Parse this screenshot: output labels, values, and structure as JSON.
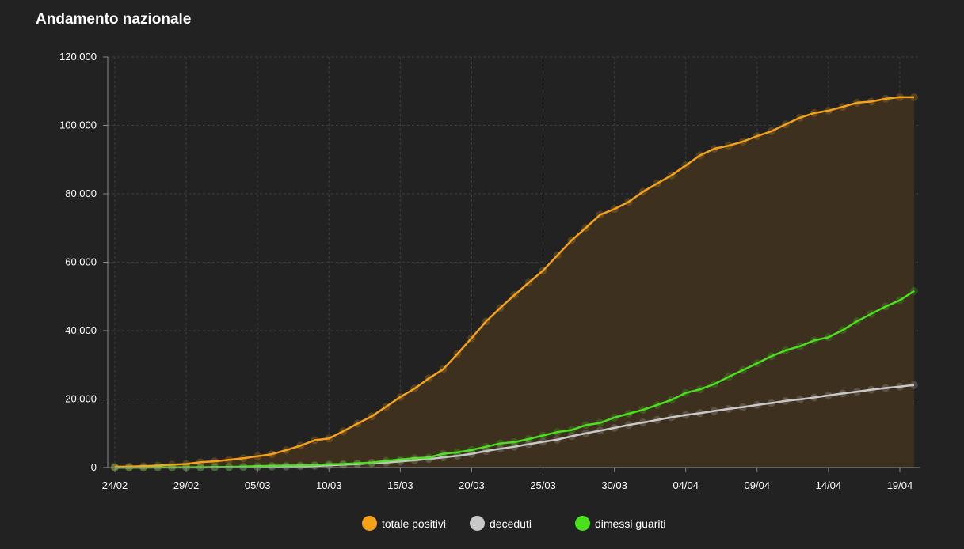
{
  "title": "Andamento nazionale",
  "chart_data": {
    "type": "area",
    "title": "Andamento nazionale",
    "x_tick_labels": [
      "24/02",
      "29/02",
      "05/03",
      "10/03",
      "15/03",
      "20/03",
      "25/03",
      "30/03",
      "04/04",
      "09/04",
      "14/04",
      "19/04"
    ],
    "x": [
      "24/02",
      "25/02",
      "26/02",
      "27/02",
      "28/02",
      "29/02",
      "01/03",
      "02/03",
      "03/03",
      "04/03",
      "05/03",
      "06/03",
      "07/03",
      "08/03",
      "09/03",
      "10/03",
      "11/03",
      "12/03",
      "13/03",
      "14/03",
      "15/03",
      "16/03",
      "17/03",
      "18/03",
      "19/03",
      "20/03",
      "21/03",
      "22/03",
      "23/03",
      "24/03",
      "25/03",
      "26/03",
      "27/03",
      "28/03",
      "29/03",
      "30/03",
      "31/03",
      "01/04",
      "02/04",
      "03/04",
      "04/04",
      "05/04",
      "06/04",
      "07/04",
      "08/04",
      "09/04",
      "10/04",
      "11/04",
      "12/04",
      "13/04",
      "14/04",
      "15/04",
      "16/04",
      "17/04",
      "18/04",
      "19/04",
      "20/04"
    ],
    "ylim": [
      0,
      120000
    ],
    "y_ticks": [
      0,
      20000,
      40000,
      60000,
      80000,
      100000,
      120000
    ],
    "y_tick_labels": [
      "0",
      "20.000",
      "40.000",
      "60.000",
      "80.000",
      "100.000",
      "120.000"
    ],
    "grid": true,
    "legend_position": "bottom",
    "series": [
      {
        "name": "totale positivi",
        "color": "#f5a21b",
        "fill": "#3d301f",
        "values": [
          221,
          311,
          385,
          588,
          821,
          1049,
          1577,
          1835,
          2263,
          2706,
          3296,
          3916,
          5061,
          6387,
          7985,
          8514,
          10590,
          12839,
          14955,
          17750,
          20603,
          23073,
          26062,
          28710,
          33190,
          37860,
          42681,
          46638,
          50418,
          54030,
          57521,
          62013,
          66414,
          70065,
          73880,
          75528,
          77635,
          80572,
          83049,
          85388,
          88274,
          91246,
          93187,
          94067,
          95262,
          96877,
          98273,
          100269,
          102253,
          103616,
          104291,
          105418,
          106607,
          106962,
          107771,
          108257,
          108237
        ]
      },
      {
        "name": "deceduti",
        "color": "#c8c8c8",
        "values": [
          7,
          10,
          12,
          17,
          21,
          29,
          34,
          52,
          79,
          107,
          148,
          197,
          233,
          366,
          463,
          631,
          827,
          1016,
          1266,
          1441,
          1809,
          2158,
          2503,
          2978,
          3405,
          4032,
          4825,
          5476,
          6077,
          6820,
          7503,
          8165,
          9134,
          10023,
          10779,
          11591,
          12428,
          13155,
          13915,
          14681,
          15362,
          15887,
          16523,
          17127,
          17669,
          18279,
          18849,
          19468,
          19899,
          20465,
          21067,
          21645,
          22170,
          22745,
          23227,
          23660,
          24114
        ]
      },
      {
        "name": "dimessi guariti",
        "color": "#4be01e",
        "values": [
          1,
          1,
          3,
          45,
          46,
          50,
          83,
          149,
          160,
          276,
          414,
          523,
          589,
          622,
          724,
          1004,
          1045,
          1258,
          1439,
          1966,
          2335,
          2749,
          2941,
          4025,
          4440,
          5129,
          6072,
          7024,
          7432,
          8326,
          9362,
          10361,
          10950,
          12384,
          13030,
          14620,
          15729,
          16847,
          18278,
          19758,
          21815,
          22837,
          24392,
          26491,
          28470,
          30455,
          32534,
          34211,
          35435,
          37130,
          38092,
          40164,
          42727,
          44927,
          47055,
          48877,
          51600
        ]
      }
    ]
  }
}
